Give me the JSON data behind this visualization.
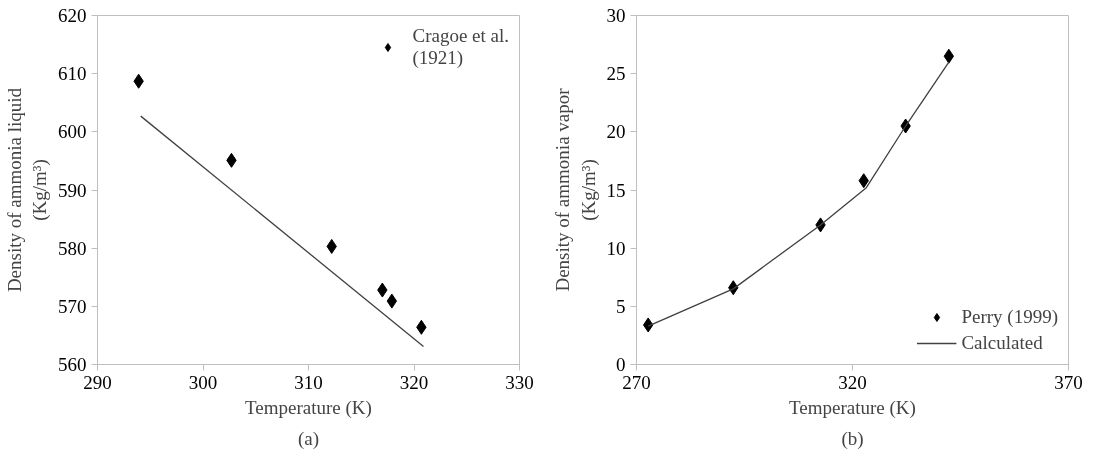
{
  "chart_data": [
    {
      "type": "scatter",
      "xlabel": "Temperature (K)",
      "ylabel": "Density of ammonia liquid\n(Kg/m³)",
      "annotations": [
        "(a)"
      ],
      "xlim": [
        290,
        330
      ],
      "xticks": [
        290,
        300,
        310,
        320,
        330
      ],
      "ylim": [
        560,
        620
      ],
      "yticks": [
        560,
        570,
        580,
        590,
        600,
        610,
        620
      ],
      "grid": false,
      "legend": "top right",
      "series": [
        {
          "name": "Cragoe et al.\n(1921)",
          "color": "#000000",
          "marker": "diamond",
          "x": [
            293.9,
            302.7,
            312.2,
            317.0,
            317.9,
            320.7
          ],
          "values": [
            608.7,
            595.1,
            580.3,
            572.8,
            570.9,
            566.4
          ]
        },
        {
          "type": "line",
          "color": "#404040",
          "x": [
            294.1,
            320.9
          ],
          "values": [
            602.7,
            563.1
          ]
        }
      ]
    },
    {
      "type": "scatter",
      "xlabel": "Temperature (K)",
      "ylabel": "Density of ammonia vapor\n(Kg/m³)",
      "annotations": [
        "(b)"
      ],
      "xlim": [
        270,
        370
      ],
      "xticks": [
        270,
        320,
        370
      ],
      "ylim": [
        0,
        30
      ],
      "yticks": [
        0,
        5,
        10,
        15,
        20,
        25,
        30
      ],
      "grid": false,
      "legend": "bottom right",
      "series": [
        {
          "name": "Perry (1999)",
          "color": "#000000",
          "marker": "diamond",
          "x": [
            272.7,
            292.4,
            312.6,
            322.6,
            332.3,
            342.3
          ],
          "values": [
            3.4,
            6.6,
            12.0,
            15.8,
            20.5,
            26.5
          ]
        },
        {
          "type": "line",
          "name": "Calculated",
          "color": "#404040",
          "x": [
            272.7,
            292.4,
            312.6,
            323.2,
            332.3,
            342.3
          ],
          "values": [
            3.3,
            6.5,
            12.0,
            15.2,
            20.5,
            26.0
          ]
        }
      ]
    }
  ]
}
